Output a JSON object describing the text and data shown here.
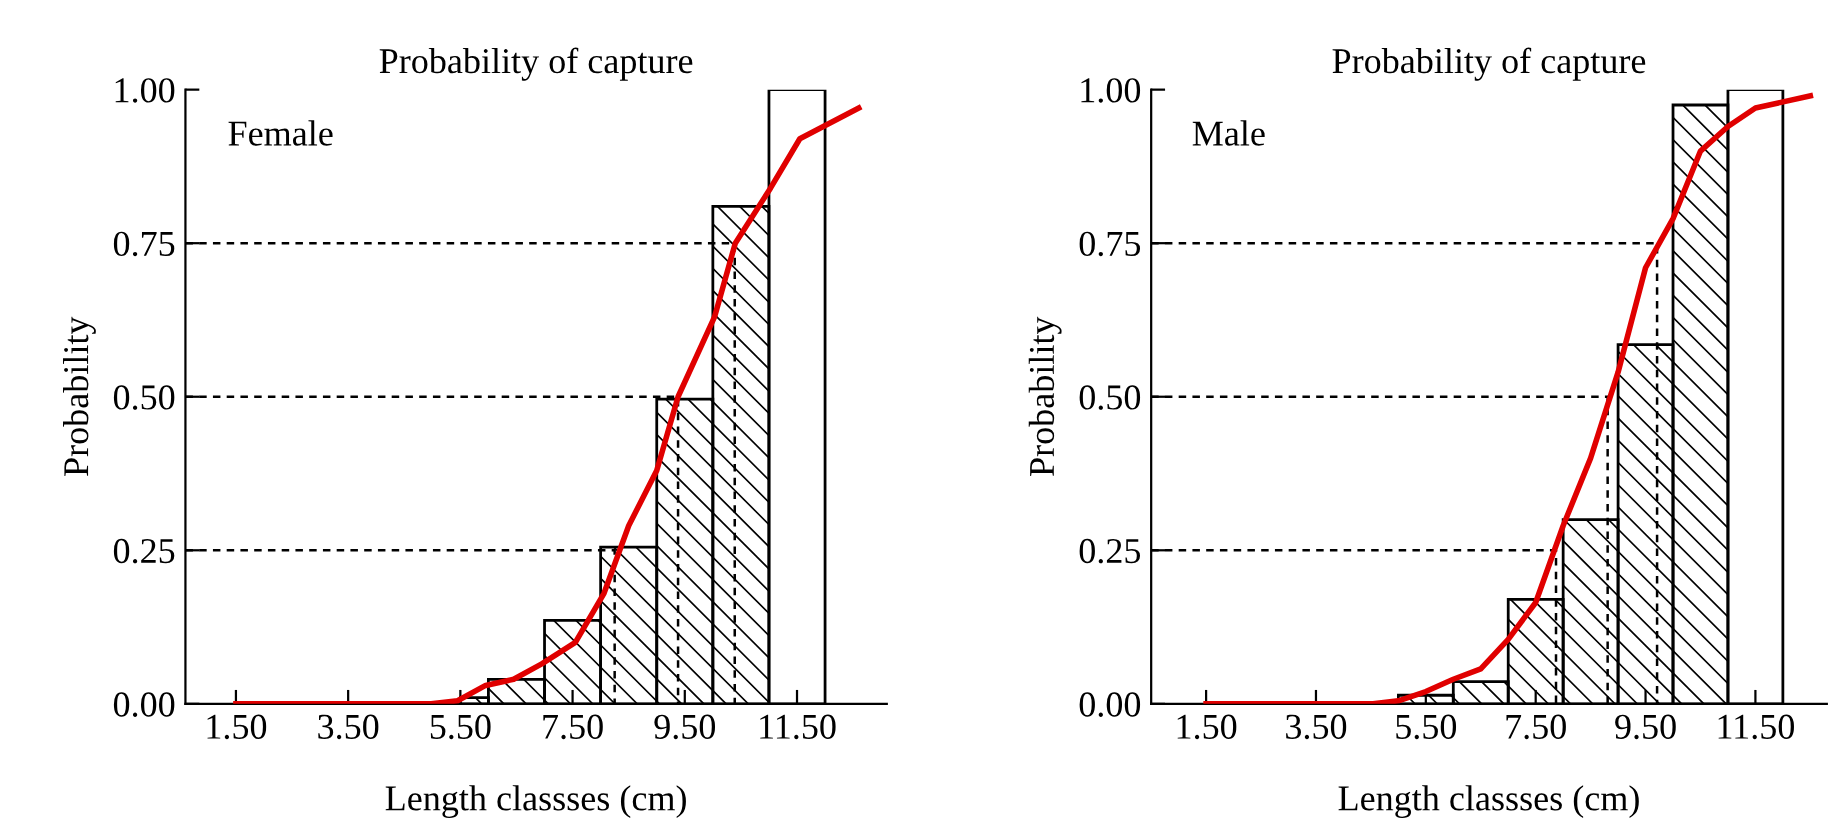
{
  "chart_data": [
    {
      "type": "histogram",
      "title": "Probability of capture",
      "xlabel": "Length classses (cm)",
      "ylabel": "Probability",
      "annotations": [
        "Female"
      ],
      "bins": [
        5.5,
        6,
        7,
        8,
        9,
        10,
        11,
        12
      ],
      "values": [
        0.01,
        0.04,
        0.136,
        0.255,
        0.496,
        0.81,
        1.0
      ],
      "series": [
        {
          "type": "line",
          "color": "#e00000",
          "x": [
            1.5,
            4.98,
            5.45,
            5.95,
            6.45,
            6.95,
            7.55,
            8.06,
            8.5,
            9.0,
            9.38,
            10.03,
            10.4,
            11.03,
            11.55,
            12.6
          ],
          "values": [
            0,
            0,
            0.005,
            0.03,
            0.04,
            0.065,
            0.1,
            0.18,
            0.29,
            0.38,
            0.5,
            0.63,
            0.75,
            0.84,
            0.92,
            0.97
          ]
        },
        {
          "type": "line",
          "color": "#000000",
          "line_style": "dashed",
          "x": [
            0.6,
            8.25,
            8.25
          ],
          "values": [
            0.25,
            0.25,
            0
          ]
        },
        {
          "type": "line",
          "color": "#000000",
          "line_style": "dashed",
          "x": [
            0.6,
            9.38,
            9.38
          ],
          "values": [
            0.5,
            0.5,
            0
          ]
        },
        {
          "type": "line",
          "color": "#000000",
          "line_style": "dashed",
          "x": [
            0.6,
            10.39,
            10.39
          ],
          "values": [
            0.75,
            0.75,
            0
          ]
        }
      ],
      "xlim": [
        0.6,
        13.1
      ],
      "ylim": [
        0,
        1.0
      ],
      "xticks": [
        {
          "value": 1.5,
          "label": "1.50"
        },
        {
          "value": 3.5,
          "label": "3.50"
        },
        {
          "value": 5.5,
          "label": "5.50"
        },
        {
          "value": 7.5,
          "label": "7.50"
        },
        {
          "value": 9.5,
          "label": "9.50"
        },
        {
          "value": 11.5,
          "label": "11.50"
        }
      ],
      "yticks": [
        {
          "value": 0,
          "label": "0.00"
        },
        {
          "value": 0.25,
          "label": "0.25"
        },
        {
          "value": 0.5,
          "label": "0.50"
        },
        {
          "value": 0.75,
          "label": "0.75"
        },
        {
          "value": 1.0,
          "label": "1.00"
        }
      ],
      "grid": false,
      "legend": false
    },
    {
      "type": "histogram",
      "title": "Probability of capture",
      "xlabel": "Length classses (cm)",
      "ylabel": "Probability",
      "annotations": [
        "Male"
      ],
      "bins": [
        5,
        6,
        7,
        8,
        9,
        10,
        11,
        12
      ],
      "values": [
        0.014,
        0.036,
        0.17,
        0.3,
        0.585,
        0.975,
        1.0
      ],
      "series": [
        {
          "type": "line",
          "color": "#e00000",
          "x": [
            1.5,
            4.54,
            5.0,
            5.5,
            6.0,
            6.5,
            7.0,
            7.5,
            8.0,
            8.5,
            9.0,
            9.5,
            10.0,
            10.5,
            11.0,
            11.5,
            12.5
          ],
          "values": [
            0,
            0,
            0.005,
            0.02,
            0.04,
            0.057,
            0.105,
            0.165,
            0.29,
            0.4,
            0.54,
            0.71,
            0.79,
            0.9,
            0.94,
            0.97,
            0.99
          ]
        },
        {
          "type": "line",
          "color": "#000000",
          "line_style": "dashed",
          "x": [
            0.5,
            7.87,
            7.87
          ],
          "values": [
            0.25,
            0.25,
            0
          ]
        },
        {
          "type": "line",
          "color": "#000000",
          "line_style": "dashed",
          "x": [
            0.5,
            8.81,
            8.81
          ],
          "values": [
            0.5,
            0.5,
            0
          ]
        },
        {
          "type": "line",
          "color": "#000000",
          "line_style": "dashed",
          "x": [
            0.5,
            9.71,
            9.71
          ],
          "values": [
            0.75,
            0.75,
            0
          ]
        }
      ],
      "xlim": [
        0.5,
        12.8
      ],
      "ylim": [
        0,
        1.0
      ],
      "xticks": [
        {
          "value": 1.5,
          "label": "1.50"
        },
        {
          "value": 3.5,
          "label": "3.50"
        },
        {
          "value": 5.5,
          "label": "5.50"
        },
        {
          "value": 7.5,
          "label": "7.50"
        },
        {
          "value": 9.5,
          "label": "9.50"
        },
        {
          "value": 11.5,
          "label": "11.50"
        }
      ],
      "yticks": [
        {
          "value": 0,
          "label": "0.00"
        },
        {
          "value": 0.25,
          "label": "0.25"
        },
        {
          "value": 0.5,
          "label": "0.50"
        },
        {
          "value": 0.75,
          "label": "0.75"
        },
        {
          "value": 1.0,
          "label": "1.00"
        }
      ],
      "grid": false,
      "legend": false
    }
  ]
}
